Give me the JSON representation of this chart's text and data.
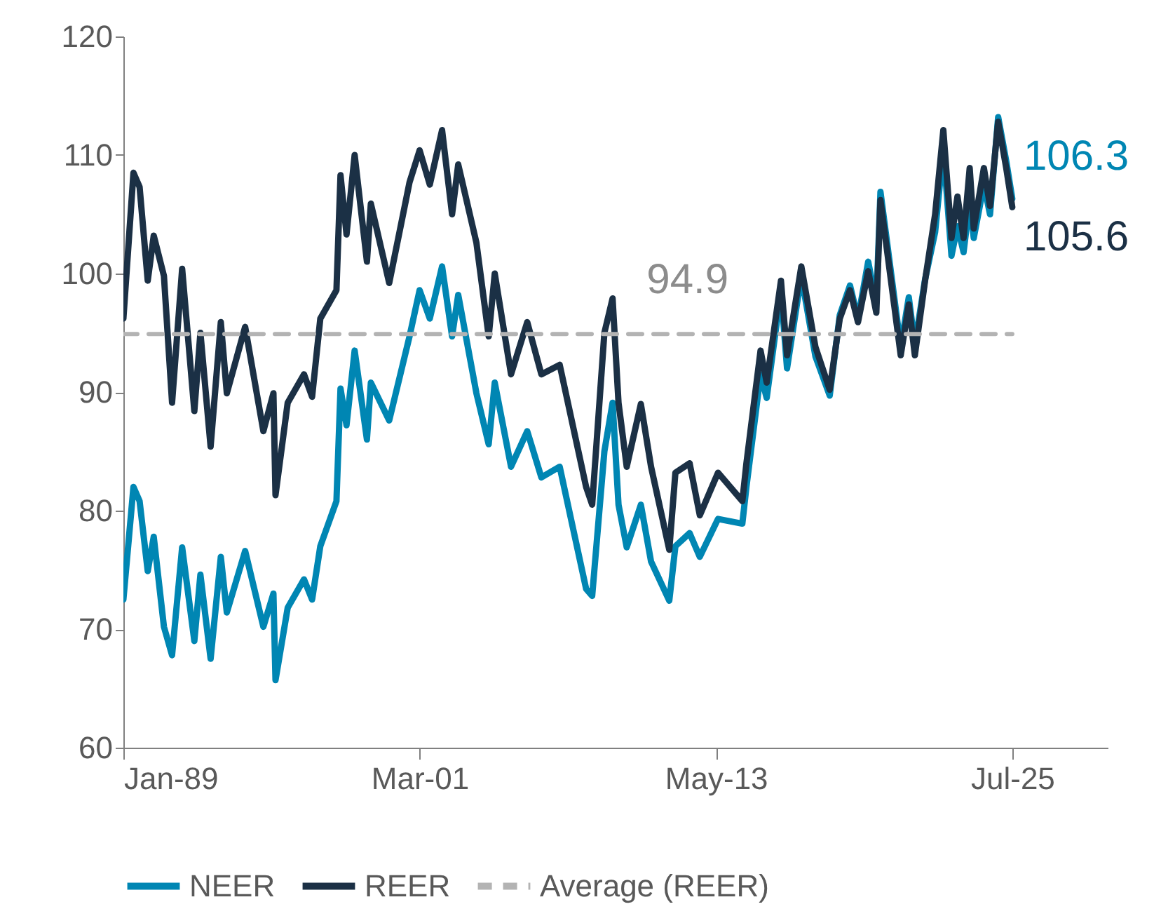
{
  "chart_data": {
    "type": "line",
    "x": [
      "1989-01",
      "1989-06",
      "1989-09",
      "1990-01",
      "1990-04",
      "1990-09",
      "1991-01",
      "1991-06",
      "1991-12",
      "1992-03",
      "1992-08",
      "1993-01",
      "1993-04",
      "1994-01",
      "1994-10",
      "1995-03",
      "1995-04",
      "1995-10",
      "1996-06",
      "1996-10",
      "1997-02",
      "1997-10",
      "1997-12",
      "1998-03",
      "1998-07",
      "1999-01",
      "1999-03",
      "1999-12",
      "2000-10",
      "2001-03",
      "2001-08",
      "2002-02",
      "2002-07",
      "2002-10",
      "2003-07",
      "2004-01",
      "2004-04",
      "2004-12",
      "2005-08",
      "2006-03",
      "2006-12",
      "2008-01",
      "2008-04",
      "2008-10",
      "2009-02",
      "2009-05",
      "2009-09",
      "2010-04",
      "2010-09",
      "2011-06",
      "2011-09",
      "2012-04",
      "2012-09",
      "2013-06",
      "2014-06",
      "2014-08",
      "2015-03",
      "2015-06",
      "2016-01",
      "2016-04",
      "2016-11",
      "2017-06",
      "2018-01",
      "2018-06",
      "2018-11",
      "2019-03",
      "2019-08",
      "2019-12",
      "2020-02",
      "2020-12",
      "2021-04",
      "2021-07",
      "2021-12",
      "2022-05",
      "2022-09",
      "2023-01",
      "2023-04",
      "2023-07",
      "2023-10",
      "2023-12",
      "2024-05",
      "2024-08",
      "2024-12",
      "2025-04",
      "2025-07"
    ],
    "series": [
      {
        "name": "NEER",
        "color": "#0086b3",
        "values": [
          72.5,
          82.0,
          80.8,
          74.9,
          77.8,
          70.2,
          67.8,
          76.9,
          69.0,
          74.6,
          67.5,
          76.1,
          71.4,
          76.6,
          70.2,
          73.0,
          65.7,
          71.8,
          74.2,
          72.5,
          77.0,
          80.8,
          90.3,
          87.2,
          93.5,
          86.0,
          90.8,
          87.6,
          94.7,
          98.6,
          96.2,
          100.6,
          94.7,
          98.2,
          89.9,
          85.6,
          90.8,
          83.7,
          86.7,
          82.8,
          83.7,
          73.4,
          72.8,
          85.0,
          89.1,
          80.5,
          76.9,
          80.5,
          75.7,
          72.4,
          77.0,
          78.1,
          76.1,
          79.3,
          78.9,
          82.0,
          91.5,
          89.5,
          98.5,
          92.0,
          99.8,
          93.0,
          89.7,
          96.5,
          99.0,
          96.2,
          101.0,
          97.5,
          106.9,
          93.8,
          98.0,
          94.0,
          99.5,
          103.5,
          110.5,
          101.5,
          104.0,
          101.8,
          106.0,
          103.0,
          107.5,
          105.0,
          113.2,
          109.5,
          106.3
        ]
      },
      {
        "name": "REER",
        "color": "#1b3045",
        "values": [
          96.2,
          108.5,
          107.3,
          99.4,
          103.2,
          99.8,
          89.1,
          100.4,
          88.4,
          95.0,
          85.4,
          95.9,
          89.9,
          95.5,
          86.7,
          89.9,
          81.3,
          89.1,
          91.5,
          89.6,
          96.2,
          98.6,
          108.3,
          103.3,
          110.0,
          101.0,
          105.9,
          99.2,
          107.7,
          110.4,
          107.5,
          112.1,
          105.0,
          109.2,
          102.6,
          94.7,
          100.0,
          91.5,
          95.9,
          91.5,
          92.3,
          82.0,
          80.5,
          95.0,
          97.9,
          89.1,
          83.7,
          89.0,
          83.7,
          76.7,
          83.2,
          84.0,
          79.6,
          83.2,
          80.8,
          84.0,
          93.5,
          90.8,
          99.4,
          93.1,
          100.6,
          93.8,
          90.2,
          96.2,
          98.6,
          95.9,
          100.2,
          96.7,
          106.2,
          93.1,
          97.4,
          93.1,
          99.4,
          105.0,
          112.1,
          103.0,
          106.5,
          103.0,
          108.9,
          103.8,
          108.9,
          105.7,
          112.8,
          108.9,
          105.6
        ]
      },
      {
        "name": "Average (REER)",
        "color": "#b3b3b3",
        "line_style": "dashed",
        "x": [
          "1989-01",
          "2025-07"
        ],
        "values": [
          94.9,
          94.9
        ]
      }
    ],
    "annotations": [
      {
        "text": "94.9",
        "x": "2012-03",
        "y": 94.9
      },
      {
        "text": "106.3",
        "x": "2025-07",
        "y": 106.3
      },
      {
        "text": "105.6",
        "x": "2025-07",
        "y": 105.6
      }
    ],
    "xlim": [
      "1989-01",
      "2029-06"
    ],
    "xticks": [
      {
        "value": "1989-01",
        "label": "Jan-89"
      },
      {
        "value": "2001-03",
        "label": "Mar-01"
      },
      {
        "value": "2013-05",
        "label": "May-13"
      },
      {
        "value": "2025-07",
        "label": "Jul-25"
      }
    ],
    "ylim": [
      60,
      120
    ],
    "yticks": [
      60,
      70,
      80,
      90,
      100,
      110,
      120
    ],
    "legend": "bottom"
  }
}
